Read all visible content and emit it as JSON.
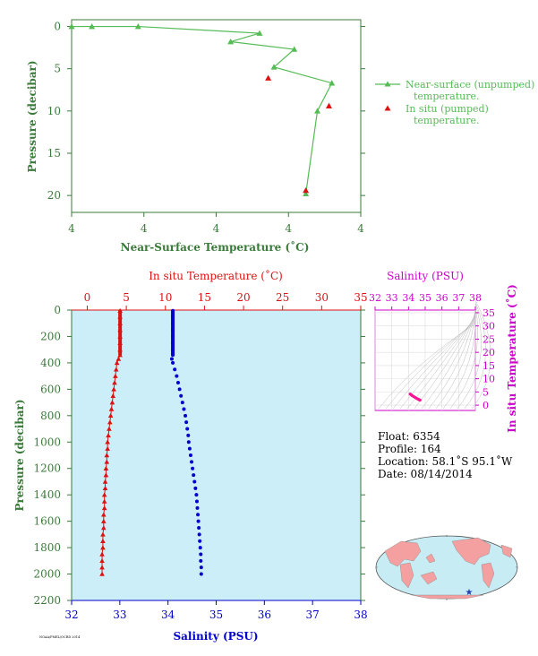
{
  "colors": {
    "axis_green": "#3a7a3a",
    "near_surface": "#55bb55",
    "in_situ": "#dd1111",
    "salinity": "#0000cc",
    "profile_bg": "#cceef8",
    "magenta": "#cc00cc",
    "ts_curve": "#ff1493",
    "land": "#f4a0a0",
    "ocean": "#c8ecf4",
    "float_marker": "#1f3fb0"
  },
  "chart_data": [
    {
      "type": "line",
      "xlabel": "Near-Surface Temperature (˚C)",
      "ylabel": "Pressure (decibar)",
      "x_tick_labels": [
        "4",
        "4",
        "4",
        "4",
        "4"
      ],
      "y_ticks": [
        0,
        5,
        10,
        15,
        20
      ],
      "ylim": [
        22,
        -0.8
      ],
      "xlim": [
        0,
        1
      ],
      "grid": false,
      "legend_position": "right",
      "series": [
        {
          "name": "Near-surface (unpumped) temperature.",
          "marker": "triangle",
          "points": [
            {
              "x": 0.0,
              "y": 0.0
            },
            {
              "x": 0.07,
              "y": 0.0
            },
            {
              "x": 0.23,
              "y": 0.0
            },
            {
              "x": 0.65,
              "y": 0.8
            },
            {
              "x": 0.55,
              "y": 1.8
            },
            {
              "x": 0.77,
              "y": 2.7
            },
            {
              "x": 0.7,
              "y": 4.8
            },
            {
              "x": 0.9,
              "y": 6.7
            },
            {
              "x": 0.85,
              "y": 10.0
            },
            {
              "x": 0.81,
              "y": 19.8
            }
          ]
        },
        {
          "name": "In situ (pumped) temperature.",
          "marker": "triangle",
          "points": [
            {
              "x": 0.68,
              "y": 6.1
            },
            {
              "x": 0.81,
              "y": 19.4
            },
            {
              "x": 0.89,
              "y": 9.4
            }
          ]
        }
      ]
    },
    {
      "type": "line",
      "x_top_label": "In situ Temperature (˚C)",
      "x_top_ticks": [
        0,
        5,
        10,
        15,
        20,
        25,
        30,
        35
      ],
      "x_top_lim": [
        -2,
        35
      ],
      "xlabel": "Salinity (PSU)",
      "x_ticks": [
        32,
        33,
        34,
        35,
        36,
        37,
        38
      ],
      "xlim": [
        32,
        38
      ],
      "ylabel": "Pressure (decibar)",
      "y_ticks": [
        0,
        200,
        400,
        600,
        800,
        1000,
        1200,
        1400,
        1600,
        1800,
        2000,
        2200
      ],
      "ylim": [
        2200,
        0
      ],
      "series": [
        {
          "name": "In situ Temperature (˚C)",
          "axis": "top",
          "marker": "triangle",
          "points": [
            {
              "x": 4.2,
              "y": 5
            },
            {
              "x": 4.2,
              "y": 50
            },
            {
              "x": 4.2,
              "y": 100
            },
            {
              "x": 4.2,
              "y": 150
            },
            {
              "x": 4.2,
              "y": 200
            },
            {
              "x": 4.2,
              "y": 250
            },
            {
              "x": 4.2,
              "y": 300
            },
            {
              "x": 4.2,
              "y": 340
            },
            {
              "x": 4.0,
              "y": 370
            },
            {
              "x": 3.8,
              "y": 400
            },
            {
              "x": 3.7,
              "y": 450
            },
            {
              "x": 3.6,
              "y": 500
            },
            {
              "x": 3.5,
              "y": 550
            },
            {
              "x": 3.4,
              "y": 600
            },
            {
              "x": 3.3,
              "y": 650
            },
            {
              "x": 3.2,
              "y": 700
            },
            {
              "x": 3.1,
              "y": 750
            },
            {
              "x": 3.0,
              "y": 800
            },
            {
              "x": 2.9,
              "y": 850
            },
            {
              "x": 2.8,
              "y": 900
            },
            {
              "x": 2.7,
              "y": 950
            },
            {
              "x": 2.6,
              "y": 1000
            },
            {
              "x": 2.6,
              "y": 1050
            },
            {
              "x": 2.5,
              "y": 1100
            },
            {
              "x": 2.5,
              "y": 1150
            },
            {
              "x": 2.4,
              "y": 1200
            },
            {
              "x": 2.4,
              "y": 1250
            },
            {
              "x": 2.3,
              "y": 1300
            },
            {
              "x": 2.3,
              "y": 1350
            },
            {
              "x": 2.2,
              "y": 1400
            },
            {
              "x": 2.2,
              "y": 1450
            },
            {
              "x": 2.2,
              "y": 1500
            },
            {
              "x": 2.1,
              "y": 1550
            },
            {
              "x": 2.1,
              "y": 1600
            },
            {
              "x": 2.1,
              "y": 1650
            },
            {
              "x": 2.0,
              "y": 1700
            },
            {
              "x": 2.0,
              "y": 1750
            },
            {
              "x": 2.0,
              "y": 1800
            },
            {
              "x": 1.9,
              "y": 1850
            },
            {
              "x": 1.9,
              "y": 1900
            },
            {
              "x": 1.9,
              "y": 1950
            },
            {
              "x": 1.9,
              "y": 2000
            }
          ]
        },
        {
          "name": "Salinity (PSU)",
          "axis": "bottom",
          "marker": "circle",
          "points": [
            {
              "x": 34.1,
              "y": 5
            },
            {
              "x": 34.1,
              "y": 50
            },
            {
              "x": 34.1,
              "y": 100
            },
            {
              "x": 34.1,
              "y": 150
            },
            {
              "x": 34.1,
              "y": 200
            },
            {
              "x": 34.1,
              "y": 250
            },
            {
              "x": 34.1,
              "y": 300
            },
            {
              "x": 34.1,
              "y": 340
            },
            {
              "x": 34.08,
              "y": 370
            },
            {
              "x": 34.1,
              "y": 400
            },
            {
              "x": 34.14,
              "y": 450
            },
            {
              "x": 34.18,
              "y": 500
            },
            {
              "x": 34.21,
              "y": 550
            },
            {
              "x": 34.24,
              "y": 600
            },
            {
              "x": 34.27,
              "y": 650
            },
            {
              "x": 34.3,
              "y": 700
            },
            {
              "x": 34.33,
              "y": 750
            },
            {
              "x": 34.36,
              "y": 800
            },
            {
              "x": 34.38,
              "y": 850
            },
            {
              "x": 34.4,
              "y": 900
            },
            {
              "x": 34.42,
              "y": 950
            },
            {
              "x": 34.43,
              "y": 1000
            },
            {
              "x": 34.45,
              "y": 1050
            },
            {
              "x": 34.47,
              "y": 1100
            },
            {
              "x": 34.49,
              "y": 1150
            },
            {
              "x": 34.51,
              "y": 1200
            },
            {
              "x": 34.53,
              "y": 1250
            },
            {
              "x": 34.55,
              "y": 1300
            },
            {
              "x": 34.57,
              "y": 1350
            },
            {
              "x": 34.59,
              "y": 1400
            },
            {
              "x": 34.6,
              "y": 1450
            },
            {
              "x": 34.61,
              "y": 1500
            },
            {
              "x": 34.62,
              "y": 1550
            },
            {
              "x": 34.63,
              "y": 1600
            },
            {
              "x": 34.64,
              "y": 1650
            },
            {
              "x": 34.65,
              "y": 1700
            },
            {
              "x": 34.66,
              "y": 1750
            },
            {
              "x": 34.67,
              "y": 1800
            },
            {
              "x": 34.68,
              "y": 1850
            },
            {
              "x": 34.68,
              "y": 1900
            },
            {
              "x": 34.69,
              "y": 1950
            },
            {
              "x": 34.69,
              "y": 2000
            }
          ]
        }
      ]
    },
    {
      "type": "line",
      "xlabel": "Salinity (PSU)",
      "x_ticks": [
        32,
        33,
        34,
        35,
        36,
        37,
        38
      ],
      "xlim": [
        32,
        38
      ],
      "ylabel": "In situ Temperature (˚C)",
      "y_ticks": [
        0,
        5,
        10,
        15,
        20,
        25,
        30,
        35
      ],
      "ylim": [
        -2,
        36
      ],
      "grid": true,
      "series": [
        {
          "marker": "circle",
          "points": [
            {
              "x": 34.1,
              "y": 4.2
            },
            {
              "x": 34.15,
              "y": 4.0
            },
            {
              "x": 34.22,
              "y": 3.6
            },
            {
              "x": 34.3,
              "y": 3.3
            },
            {
              "x": 34.4,
              "y": 2.9
            },
            {
              "x": 34.5,
              "y": 2.5
            },
            {
              "x": 34.6,
              "y": 2.2
            },
            {
              "x": 34.65,
              "y": 2.0
            },
            {
              "x": 34.69,
              "y": 1.9
            }
          ]
        }
      ]
    }
  ],
  "float_info": {
    "float": "Float:  6354",
    "profile": "Profile:  164",
    "location": "Location:  58.1˚S  95.1˚W",
    "date": "Date:  08/14/2014"
  },
  "footer_note": "NOAA/PMEL/OCRD 2014"
}
